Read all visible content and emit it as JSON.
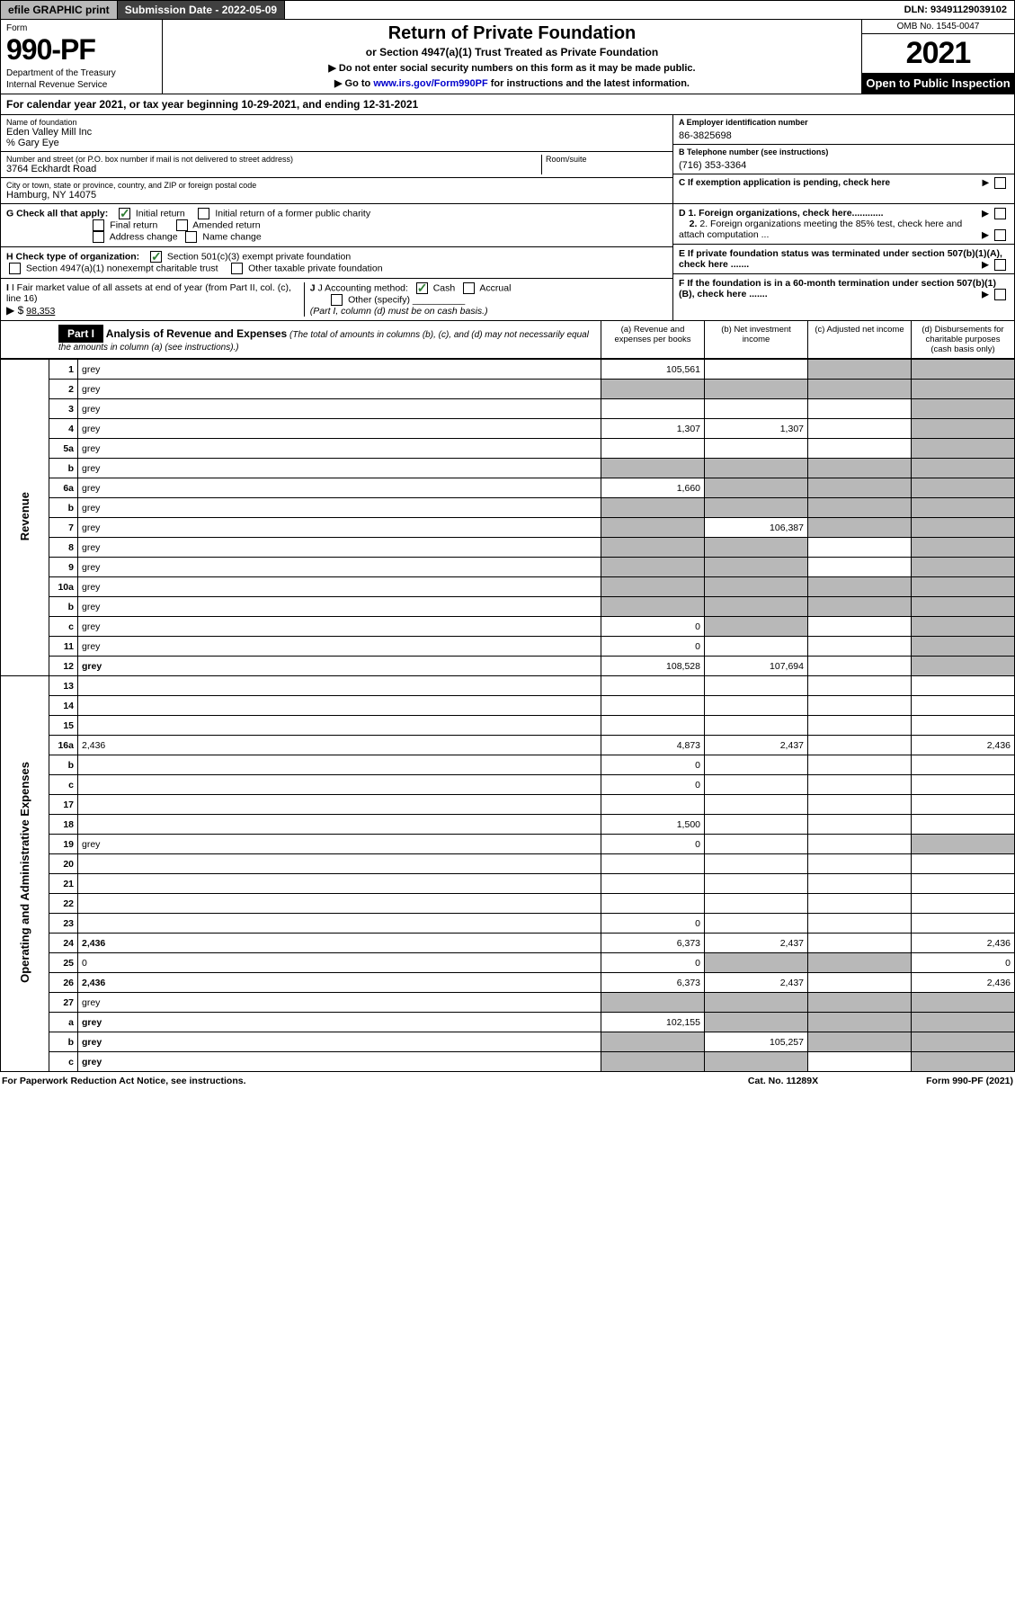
{
  "top": {
    "efile": "efile GRAPHIC print",
    "sub_label": "Submission Date - 2022-05-09",
    "dln": "DLN: 93491129039102"
  },
  "header": {
    "form_label": "Form",
    "form_num": "990-PF",
    "dept1": "Department of the Treasury",
    "dept2": "Internal Revenue Service",
    "title": "Return of Private Foundation",
    "subtitle": "or Section 4947(a)(1) Trust Treated as Private Foundation",
    "note1": "▶ Do not enter social security numbers on this form as it may be made public.",
    "note2_pre": "▶ Go to ",
    "note2_link": "www.irs.gov/Form990PF",
    "note2_post": " for instructions and the latest information.",
    "omb": "OMB No. 1545-0047",
    "year": "2021",
    "open": "Open to Public Inspection"
  },
  "cal_year": {
    "pre": "For calendar year 2021, or tax year beginning ",
    "begin": "10-29-2021",
    "mid": ", and ending ",
    "end": "12-31-2021"
  },
  "entity": {
    "name_lbl": "Name of foundation",
    "name": "Eden Valley Mill Inc",
    "care_of": "% Gary Eye",
    "addr_lbl": "Number and street (or P.O. box number if mail is not delivered to street address)",
    "addr": "3764 Eckhardt Road",
    "room_lbl": "Room/suite",
    "city_lbl": "City or town, state or province, country, and ZIP or foreign postal code",
    "city": "Hamburg, NY  14075",
    "a_lbl": "A Employer identification number",
    "ein": "86-3825698",
    "b_lbl": "B Telephone number (see instructions)",
    "phone": "(716) 353-3364",
    "c_lbl": "C If exemption application is pending, check here"
  },
  "g": {
    "label": "G Check all that apply:",
    "initial": "Initial return",
    "initial_former": "Initial return of a former public charity",
    "final": "Final return",
    "amended": "Amended return",
    "address": "Address change",
    "name_change": "Name change"
  },
  "h": {
    "label": "H Check type of organization:",
    "opt1": "Section 501(c)(3) exempt private foundation",
    "opt2": "Section 4947(a)(1) nonexempt charitable trust",
    "opt3": "Other taxable private foundation"
  },
  "i": {
    "label": "I Fair market value of all assets at end of year (from Part II, col. (c), line 16)",
    "arrow": "▶ $",
    "val": "98,353"
  },
  "j": {
    "label": "J Accounting method:",
    "cash": "Cash",
    "accrual": "Accrual",
    "other": "Other (specify)",
    "note": "(Part I, column (d) must be on cash basis.)"
  },
  "d": {
    "d1": "D 1. Foreign organizations, check here............",
    "d2": "2. Foreign organizations meeting the 85% test, check here and attach computation ..."
  },
  "e": {
    "text": "E  If private foundation status was terminated under section 507(b)(1)(A), check here ......."
  },
  "f": {
    "text": "F  If the foundation is in a 60-month termination under section 507(b)(1)(B), check here ......."
  },
  "part1": {
    "label": "Part I",
    "title": "Analysis of Revenue and Expenses",
    "title_note": "(The total of amounts in columns (b), (c), and (d) may not necessarily equal the amounts in column (a) (see instructions).)",
    "col_a": "(a)   Revenue and expenses per books",
    "col_b": "(b)   Net investment income",
    "col_c": "(c)   Adjusted net income",
    "col_d": "(d)   Disbursements for charitable purposes (cash basis only)"
  },
  "side_rev": "Revenue",
  "side_exp": "Operating and Administrative Expenses",
  "rows": [
    {
      "n": "1",
      "d": "grey",
      "a": "105,561",
      "b": "",
      "c": "grey"
    },
    {
      "n": "2",
      "d": "grey",
      "a": "grey",
      "b": "grey",
      "c": "grey"
    },
    {
      "n": "3",
      "d": "grey",
      "a": "",
      "b": "",
      "c": ""
    },
    {
      "n": "4",
      "d": "grey",
      "a": "1,307",
      "b": "1,307",
      "c": ""
    },
    {
      "n": "5a",
      "d": "grey",
      "a": "",
      "b": "",
      "c": ""
    },
    {
      "n": "b",
      "d": "grey",
      "a": "grey",
      "b": "grey",
      "c": "grey"
    },
    {
      "n": "6a",
      "d": "grey",
      "a": "1,660",
      "b": "grey",
      "c": "grey"
    },
    {
      "n": "b",
      "d": "grey",
      "a": "grey",
      "b": "grey",
      "c": "grey"
    },
    {
      "n": "7",
      "d": "grey",
      "a": "grey",
      "b": "106,387",
      "c": "grey"
    },
    {
      "n": "8",
      "d": "grey",
      "a": "grey",
      "b": "grey",
      "c": ""
    },
    {
      "n": "9",
      "d": "grey",
      "a": "grey",
      "b": "grey",
      "c": ""
    },
    {
      "n": "10a",
      "d": "grey",
      "a": "grey",
      "b": "grey",
      "c": "grey"
    },
    {
      "n": "b",
      "d": "grey",
      "a": "grey",
      "b": "grey",
      "c": "grey"
    },
    {
      "n": "c",
      "d": "grey",
      "a": "0",
      "b": "grey",
      "c": ""
    },
    {
      "n": "11",
      "d": "grey",
      "a": "0",
      "b": "",
      "c": ""
    },
    {
      "n": "12",
      "d": "grey",
      "bold": true,
      "a": "108,528",
      "b": "107,694",
      "c": ""
    },
    {
      "n": "13",
      "d": "",
      "a": "",
      "b": "",
      "c": ""
    },
    {
      "n": "14",
      "d": "",
      "a": "",
      "b": "",
      "c": ""
    },
    {
      "n": "15",
      "d": "",
      "a": "",
      "b": "",
      "c": ""
    },
    {
      "n": "16a",
      "d": "2,436",
      "a": "4,873",
      "b": "2,437",
      "c": ""
    },
    {
      "n": "b",
      "d": "",
      "a": "0",
      "b": "",
      "c": ""
    },
    {
      "n": "c",
      "d": "",
      "a": "0",
      "b": "",
      "c": ""
    },
    {
      "n": "17",
      "d": "",
      "a": "",
      "b": "",
      "c": ""
    },
    {
      "n": "18",
      "d": "",
      "a": "1,500",
      "b": "",
      "c": ""
    },
    {
      "n": "19",
      "d": "grey",
      "a": "0",
      "b": "",
      "c": ""
    },
    {
      "n": "20",
      "d": "",
      "a": "",
      "b": "",
      "c": ""
    },
    {
      "n": "21",
      "d": "",
      "a": "",
      "b": "",
      "c": ""
    },
    {
      "n": "22",
      "d": "",
      "a": "",
      "b": "",
      "c": ""
    },
    {
      "n": "23",
      "d": "",
      "a": "0",
      "b": "",
      "c": ""
    },
    {
      "n": "24",
      "d": "2,436",
      "bold": true,
      "a": "6,373",
      "b": "2,437",
      "c": ""
    },
    {
      "n": "25",
      "d": "0",
      "a": "0",
      "b": "grey",
      "c": "grey"
    },
    {
      "n": "26",
      "d": "2,436",
      "bold": true,
      "a": "6,373",
      "b": "2,437",
      "c": ""
    },
    {
      "n": "27",
      "d": "grey",
      "a": "grey",
      "b": "grey",
      "c": "grey"
    },
    {
      "n": "a",
      "d": "grey",
      "bold": true,
      "a": "102,155",
      "b": "grey",
      "c": "grey"
    },
    {
      "n": "b",
      "d": "grey",
      "bold": true,
      "a": "grey",
      "b": "105,257",
      "c": "grey"
    },
    {
      "n": "c",
      "d": "grey",
      "bold": true,
      "a": "grey",
      "b": "grey",
      "c": ""
    }
  ],
  "footer": {
    "left": "For Paperwork Reduction Act Notice, see instructions.",
    "mid": "Cat. No. 11289X",
    "right": "Form 990-PF (2021)"
  }
}
